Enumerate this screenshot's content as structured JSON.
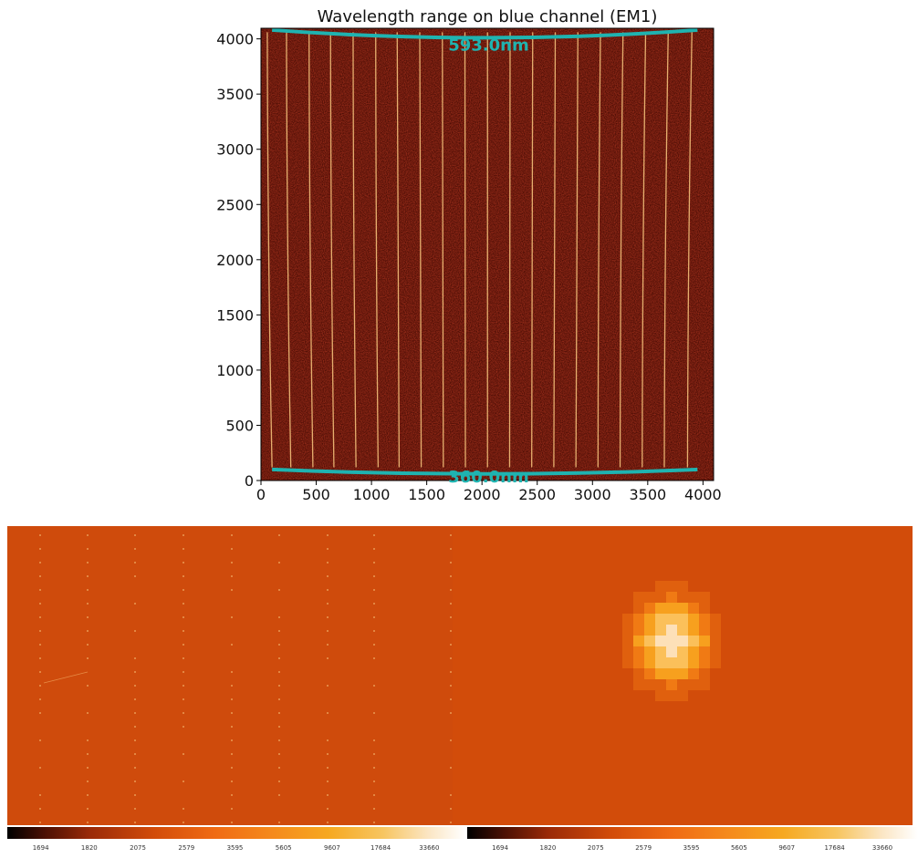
{
  "chart_data": [
    {
      "type": "heatmap",
      "title": "Wavelength range on blue channel (EM1)",
      "xlabel": "",
      "ylabel": "",
      "xlim": [
        0,
        4096
      ],
      "ylim": [
        0,
        4096
      ],
      "xticks": [
        0,
        500,
        1000,
        1500,
        2000,
        2500,
        3000,
        3500,
        4000
      ],
      "yticks": [
        0,
        500,
        1000,
        1500,
        2000,
        2500,
        3000,
        3500,
        4000
      ],
      "annotations": [
        {
          "text": "593.0nm",
          "x": 2060,
          "y": 4060
        },
        {
          "text": "360.0nm",
          "x": 2060,
          "y": 150
        }
      ],
      "boundary_curves": [
        {
          "label": "593.0nm",
          "x": [
            100,
            2048,
            3950
          ],
          "y": [
            4080,
            4010,
            4080
          ]
        },
        {
          "label": "360.0nm",
          "x": [
            100,
            2048,
            3950
          ],
          "y": [
            100,
            60,
            100
          ]
        }
      ],
      "trace_x_positions": [
        100,
        270,
        470,
        660,
        860,
        1060,
        1250,
        1450,
        1650,
        1850,
        2050,
        2250,
        2450,
        2650,
        2850,
        3050,
        3250,
        3450,
        3650,
        3860
      ],
      "colors": {
        "background": "#5a0f05",
        "trace": "#f3c07a",
        "curve": "#1fb3b0"
      }
    },
    {
      "type": "heatmap",
      "colorbar_ticks": [
        "1694",
        "1820",
        "2075",
        "2579",
        "3595",
        "5605",
        "9607",
        "17684",
        "33660"
      ]
    },
    {
      "type": "heatmap",
      "colorbar_ticks": [
        "1694",
        "1820",
        "2075",
        "2579",
        "3595",
        "5605",
        "9607",
        "17684",
        "33660"
      ]
    }
  ]
}
